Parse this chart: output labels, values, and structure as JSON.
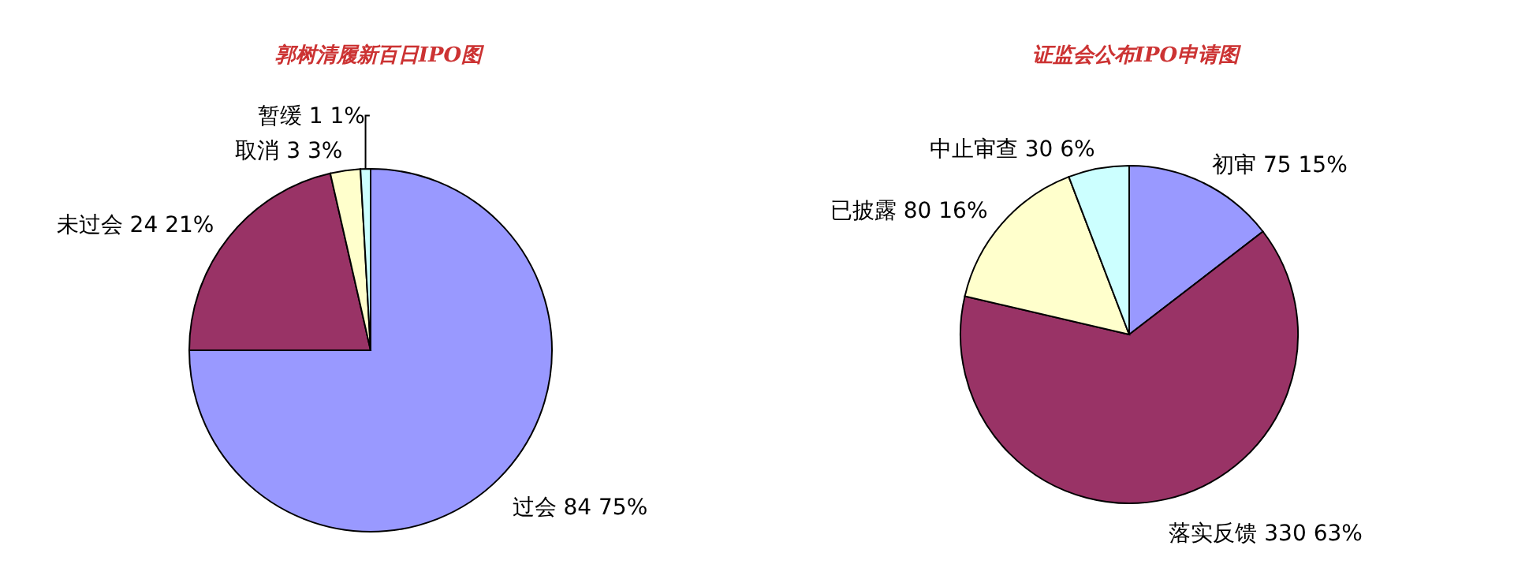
{
  "chart_data": [
    {
      "type": "pie",
      "title": "郭树清履新百日IPO图",
      "categories": [
        "过会",
        "未过会",
        "取消",
        "暂缓"
      ],
      "values": [
        84,
        24,
        3,
        1
      ],
      "value_labels": [
        "84 75%",
        "24 21%",
        "3 3%",
        "1 1%"
      ],
      "colors": [
        "#9999ff",
        "#993366",
        "#ffffcc",
        "#ccffff"
      ]
    },
    {
      "type": "pie",
      "title": "证监会公布IPO申请图",
      "categories": [
        "初审",
        "落实反馈",
        "已披露",
        "中止审查"
      ],
      "values": [
        75,
        330,
        80,
        30
      ],
      "value_labels": [
        "75 15%",
        "330 63%",
        "80 16%",
        "30 6%"
      ],
      "colors": [
        "#9999ff",
        "#993366",
        "#ffffcc",
        "#ccffff"
      ]
    }
  ]
}
